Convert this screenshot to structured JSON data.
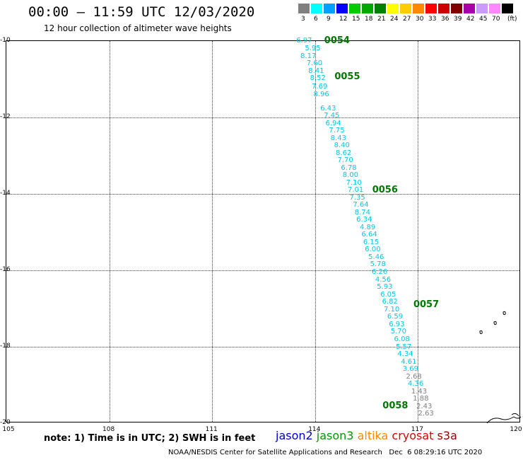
{
  "header": {
    "title": "00:00 – 11:59 UTC 12/03/2020",
    "subtitle": "12 hour collection of altimeter wave heights"
  },
  "scale": {
    "unit": "(ft)",
    "bins": [
      {
        "label": "3",
        "color": "#808080"
      },
      {
        "label": "6",
        "color": "#00ffff"
      },
      {
        "label": "9",
        "color": "#00a0ff"
      },
      {
        "label": "12",
        "color": "#0000ff"
      },
      {
        "label": "15",
        "color": "#00cc00"
      },
      {
        "label": "18",
        "color": "#00a800"
      },
      {
        "label": "21",
        "color": "#008000"
      },
      {
        "label": "24",
        "color": "#ffff00"
      },
      {
        "label": "27",
        "color": "#ffcc00"
      },
      {
        "label": "30",
        "color": "#ff8800"
      },
      {
        "label": "33",
        "color": "#ff0000"
      },
      {
        "label": "36",
        "color": "#cc0000"
      },
      {
        "label": "39",
        "color": "#800000"
      },
      {
        "label": "42",
        "color": "#aa00aa"
      },
      {
        "label": "45",
        "color": "#cc99ff"
      },
      {
        "label": "70",
        "color": "#ff88ff"
      },
      {
        "label": "",
        "color": "#000000"
      }
    ]
  },
  "map": {
    "lon_range": [
      105,
      120
    ],
    "lat_range": [
      -10,
      -20
    ],
    "lon_ticks": [
      "105",
      "108",
      "111",
      "114",
      "117",
      "120"
    ],
    "lat_ticks": [
      "-10",
      "-12",
      "-14",
      "-16",
      "-18",
      "-20"
    ]
  },
  "passes": [
    {
      "label": "0054",
      "lon": 114.35,
      "lat": -10.0
    },
    {
      "label": "0055",
      "lon": 114.65,
      "lat": -10.95
    },
    {
      "label": "0056",
      "lon": 115.75,
      "lat": -13.9
    },
    {
      "label": "0057",
      "lon": 116.95,
      "lat": -16.9
    },
    {
      "label": "0058",
      "lon": 116.05,
      "lat": -19.55
    }
  ],
  "observations": [
    {
      "v": "6.97",
      "lon": 113.7,
      "lat": -10.0,
      "c": "#00c8e8"
    },
    {
      "v": "5.95",
      "lon": 113.95,
      "lat": -10.2,
      "c": "#00c8e8"
    },
    {
      "v": "8.17",
      "lon": 113.82,
      "lat": -10.4,
      "c": "#00c8e8"
    },
    {
      "v": "7.60",
      "lon": 114.0,
      "lat": -10.6,
      "c": "#00c8e8"
    },
    {
      "v": "8.41",
      "lon": 114.05,
      "lat": -10.8,
      "c": "#00c8e8"
    },
    {
      "v": "8.52",
      "lon": 114.1,
      "lat": -10.98,
      "c": "#00c8e8"
    },
    {
      "v": "7.69",
      "lon": 114.15,
      "lat": -11.2,
      "c": "#00c8e8"
    },
    {
      "v": "8.96",
      "lon": 114.2,
      "lat": -11.4,
      "c": "#00c8e8"
    },
    {
      "v": "6.43",
      "lon": 114.4,
      "lat": -11.78,
      "c": "#00c8e8"
    },
    {
      "v": "7.45",
      "lon": 114.5,
      "lat": -11.97,
      "c": "#00c8e8"
    },
    {
      "v": "6.94",
      "lon": 114.55,
      "lat": -12.17,
      "c": "#00c8e8"
    },
    {
      "v": "7.75",
      "lon": 114.65,
      "lat": -12.35,
      "c": "#00c8e8"
    },
    {
      "v": "8.43",
      "lon": 114.7,
      "lat": -12.55,
      "c": "#00c8e8"
    },
    {
      "v": "8.40",
      "lon": 114.8,
      "lat": -12.74,
      "c": "#00c8e8"
    },
    {
      "v": "8.62",
      "lon": 114.85,
      "lat": -12.94,
      "c": "#00c8e8"
    },
    {
      "v": "7.70",
      "lon": 114.9,
      "lat": -13.13,
      "c": "#00c8e8"
    },
    {
      "v": "6.78",
      "lon": 115.0,
      "lat": -13.33,
      "c": "#00c8e8"
    },
    {
      "v": "8.00",
      "lon": 115.05,
      "lat": -13.52,
      "c": "#00c8e8"
    },
    {
      "v": "7.10",
      "lon": 115.15,
      "lat": -13.72,
      "c": "#00c8e8"
    },
    {
      "v": "7.01",
      "lon": 115.2,
      "lat": -13.91,
      "c": "#00c8e8"
    },
    {
      "v": "7.35",
      "lon": 115.25,
      "lat": -14.11,
      "c": "#00c8e8"
    },
    {
      "v": "7.64",
      "lon": 115.35,
      "lat": -14.3,
      "c": "#00c8e8"
    },
    {
      "v": "8.74",
      "lon": 115.4,
      "lat": -14.5,
      "c": "#00c8e8"
    },
    {
      "v": "6.34",
      "lon": 115.45,
      "lat": -14.69,
      "c": "#00c8e8"
    },
    {
      "v": "4.89",
      "lon": 115.55,
      "lat": -14.89,
      "c": "#00c8e8"
    },
    {
      "v": "6.64",
      "lon": 115.6,
      "lat": -15.08,
      "c": "#00c8e8"
    },
    {
      "v": "6.15",
      "lon": 115.65,
      "lat": -15.28,
      "c": "#00c8e8"
    },
    {
      "v": "6.00",
      "lon": 115.7,
      "lat": -15.47,
      "c": "#00c8e8"
    },
    {
      "v": "5.46",
      "lon": 115.8,
      "lat": -15.67,
      "c": "#00c8e8"
    },
    {
      "v": "5.78",
      "lon": 115.85,
      "lat": -15.86,
      "c": "#00c8e8"
    },
    {
      "v": "6.26",
      "lon": 115.9,
      "lat": -16.06,
      "c": "#00c8e8"
    },
    {
      "v": "4.56",
      "lon": 116.0,
      "lat": -16.25,
      "c": "#00c8e8"
    },
    {
      "v": "5.93",
      "lon": 116.05,
      "lat": -16.45,
      "c": "#00c8e8"
    },
    {
      "v": "6.05",
      "lon": 116.15,
      "lat": -16.64,
      "c": "#00c8e8"
    },
    {
      "v": "6.82",
      "lon": 116.2,
      "lat": -16.84,
      "c": "#00c8e8"
    },
    {
      "v": "7.10",
      "lon": 116.25,
      "lat": -17.03,
      "c": "#00c8e8"
    },
    {
      "v": "6.59",
      "lon": 116.35,
      "lat": -17.23,
      "c": "#00c8e8"
    },
    {
      "v": "6.93",
      "lon": 116.4,
      "lat": -17.42,
      "c": "#00c8e8"
    },
    {
      "v": "5.70",
      "lon": 116.45,
      "lat": -17.62,
      "c": "#00c8e8"
    },
    {
      "v": "6.08",
      "lon": 116.55,
      "lat": -17.81,
      "c": "#00c8e8"
    },
    {
      "v": "5.57",
      "lon": 116.6,
      "lat": -18.01,
      "c": "#00c8e8"
    },
    {
      "v": "4.34",
      "lon": 116.65,
      "lat": -18.2,
      "c": "#00c8e8"
    },
    {
      "v": "4.61",
      "lon": 116.75,
      "lat": -18.4,
      "c": "#00c8e8"
    },
    {
      "v": "3.69",
      "lon": 116.8,
      "lat": -18.59,
      "c": "#00c8e8"
    },
    {
      "v": "2.68",
      "lon": 116.9,
      "lat": -18.79,
      "c": "#808080"
    },
    {
      "v": "4.36",
      "lon": 116.95,
      "lat": -18.98,
      "c": "#00c8e8"
    },
    {
      "v": "1.43",
      "lon": 117.05,
      "lat": -19.18,
      "c": "#808080"
    },
    {
      "v": "1.88",
      "lon": 117.1,
      "lat": -19.37,
      "c": "#808080"
    },
    {
      "v": "2.43",
      "lon": 117.2,
      "lat": -19.57,
      "c": "#808080"
    },
    {
      "v": "2.63",
      "lon": 117.25,
      "lat": -19.76,
      "c": "#808080"
    }
  ],
  "footer": {
    "note": "note: 1) Time is in UTC; 2) SWH is in feet",
    "satellites": [
      {
        "name": "jason2",
        "color": "#0000cc"
      },
      {
        "name": "jason3",
        "color": "#009900"
      },
      {
        "name": "altika",
        "color": "#ff8800"
      },
      {
        "name": "cryosat",
        "color": "#dd0000"
      },
      {
        "name": "s3a",
        "color": "#990000"
      }
    ],
    "credit": "NOAA/NESDIS Center for Satellite Applications and Research   Dec  6 08:29:16 UTC 2020"
  }
}
